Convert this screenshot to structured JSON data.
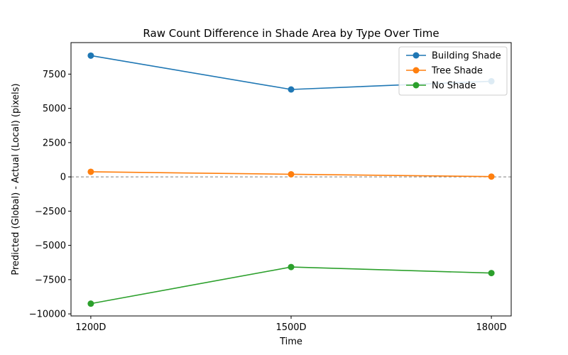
{
  "chart_data": {
    "type": "line",
    "title": "Raw Count Difference in Shade Area by Type Over Time",
    "xlabel": "Time",
    "ylabel": "Predicted (Global) - Actual (Local) (pixels)",
    "categories": [
      "1200D",
      "1500D",
      "1800D"
    ],
    "ylim": [
      -10150,
      9800
    ],
    "yticks": [
      -10000,
      -7500,
      -5000,
      -2500,
      0,
      2500,
      5000,
      7500
    ],
    "ytick_labels": [
      "−10000",
      "−7500",
      "−5000",
      "−2500",
      "0",
      "2500",
      "5000",
      "7500"
    ],
    "reference_line": {
      "y": 0,
      "style": "dashed",
      "color": "#808080"
    },
    "legend_position": "top-right",
    "grid": false,
    "series": [
      {
        "name": "Building Shade",
        "color": "#1f77b4",
        "values": [
          8850,
          6380,
          6980
        ]
      },
      {
        "name": "Tree Shade",
        "color": "#ff7f0e",
        "values": [
          370,
          190,
          20
        ]
      },
      {
        "name": "No Shade",
        "color": "#2ca02c",
        "values": [
          -9250,
          -6580,
          -7020
        ]
      }
    ]
  }
}
